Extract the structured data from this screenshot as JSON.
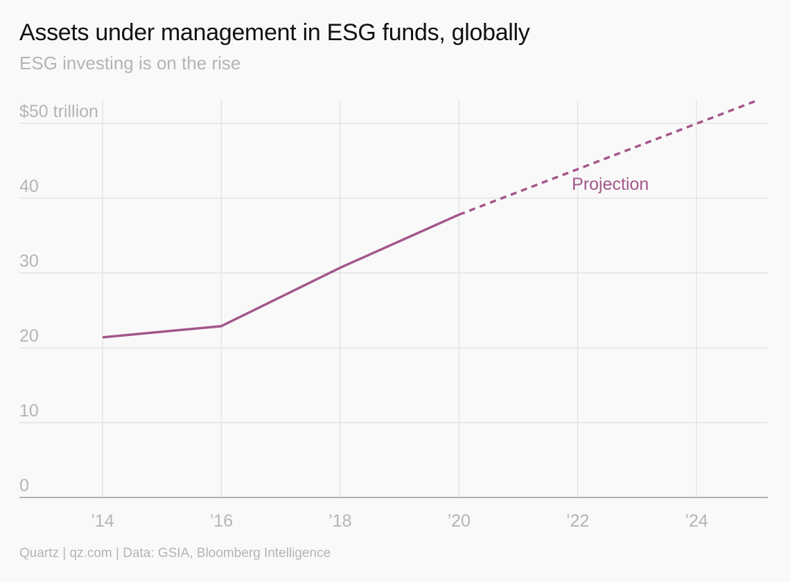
{
  "title": "Assets under management in ESG funds, globally",
  "subtitle": "ESG investing is on the rise",
  "source": "Quartz | qz.com | Data: GSIA, Bloomberg Intelligence",
  "colors": {
    "series": "#a3578a",
    "grid": "#e3e3e3",
    "axis": "#9a9a9a",
    "text_muted": "#b4b4b4",
    "background": "#f9f9f9"
  },
  "chart_data": {
    "type": "line",
    "title": "Assets under management in ESG funds, globally",
    "subtitle": "ESG investing is on the rise",
    "xlabel": "",
    "ylabel": "",
    "xlim": [
      2012.6,
      2025.2
    ],
    "ylim": [
      0,
      50
    ],
    "grid": true,
    "x_ticks": [
      {
        "value": 2014,
        "label": "’14"
      },
      {
        "value": 2016,
        "label": "’16"
      },
      {
        "value": 2018,
        "label": "’18"
      },
      {
        "value": 2020,
        "label": "’20"
      },
      {
        "value": 2022,
        "label": "’22"
      },
      {
        "value": 2024,
        "label": "’24"
      }
    ],
    "y_ticks": [
      {
        "value": 0,
        "label": "0"
      },
      {
        "value": 10,
        "label": "10"
      },
      {
        "value": 20,
        "label": "20"
      },
      {
        "value": 30,
        "label": "30"
      },
      {
        "value": 40,
        "label": "40"
      },
      {
        "value": 50,
        "label": "$50 trillion"
      }
    ],
    "series": [
      {
        "style": "solid",
        "x": [
          2014,
          2016,
          2018,
          2020
        ],
        "y": [
          21.4,
          22.9,
          30.7,
          37.8
        ]
      },
      {
        "style": "dashed",
        "x": [
          2020,
          2025
        ],
        "y": [
          37.8,
          53.0
        ]
      }
    ],
    "annotations": [
      {
        "text": "Projection",
        "x": 2021.9,
        "y": 41.1
      }
    ]
  }
}
